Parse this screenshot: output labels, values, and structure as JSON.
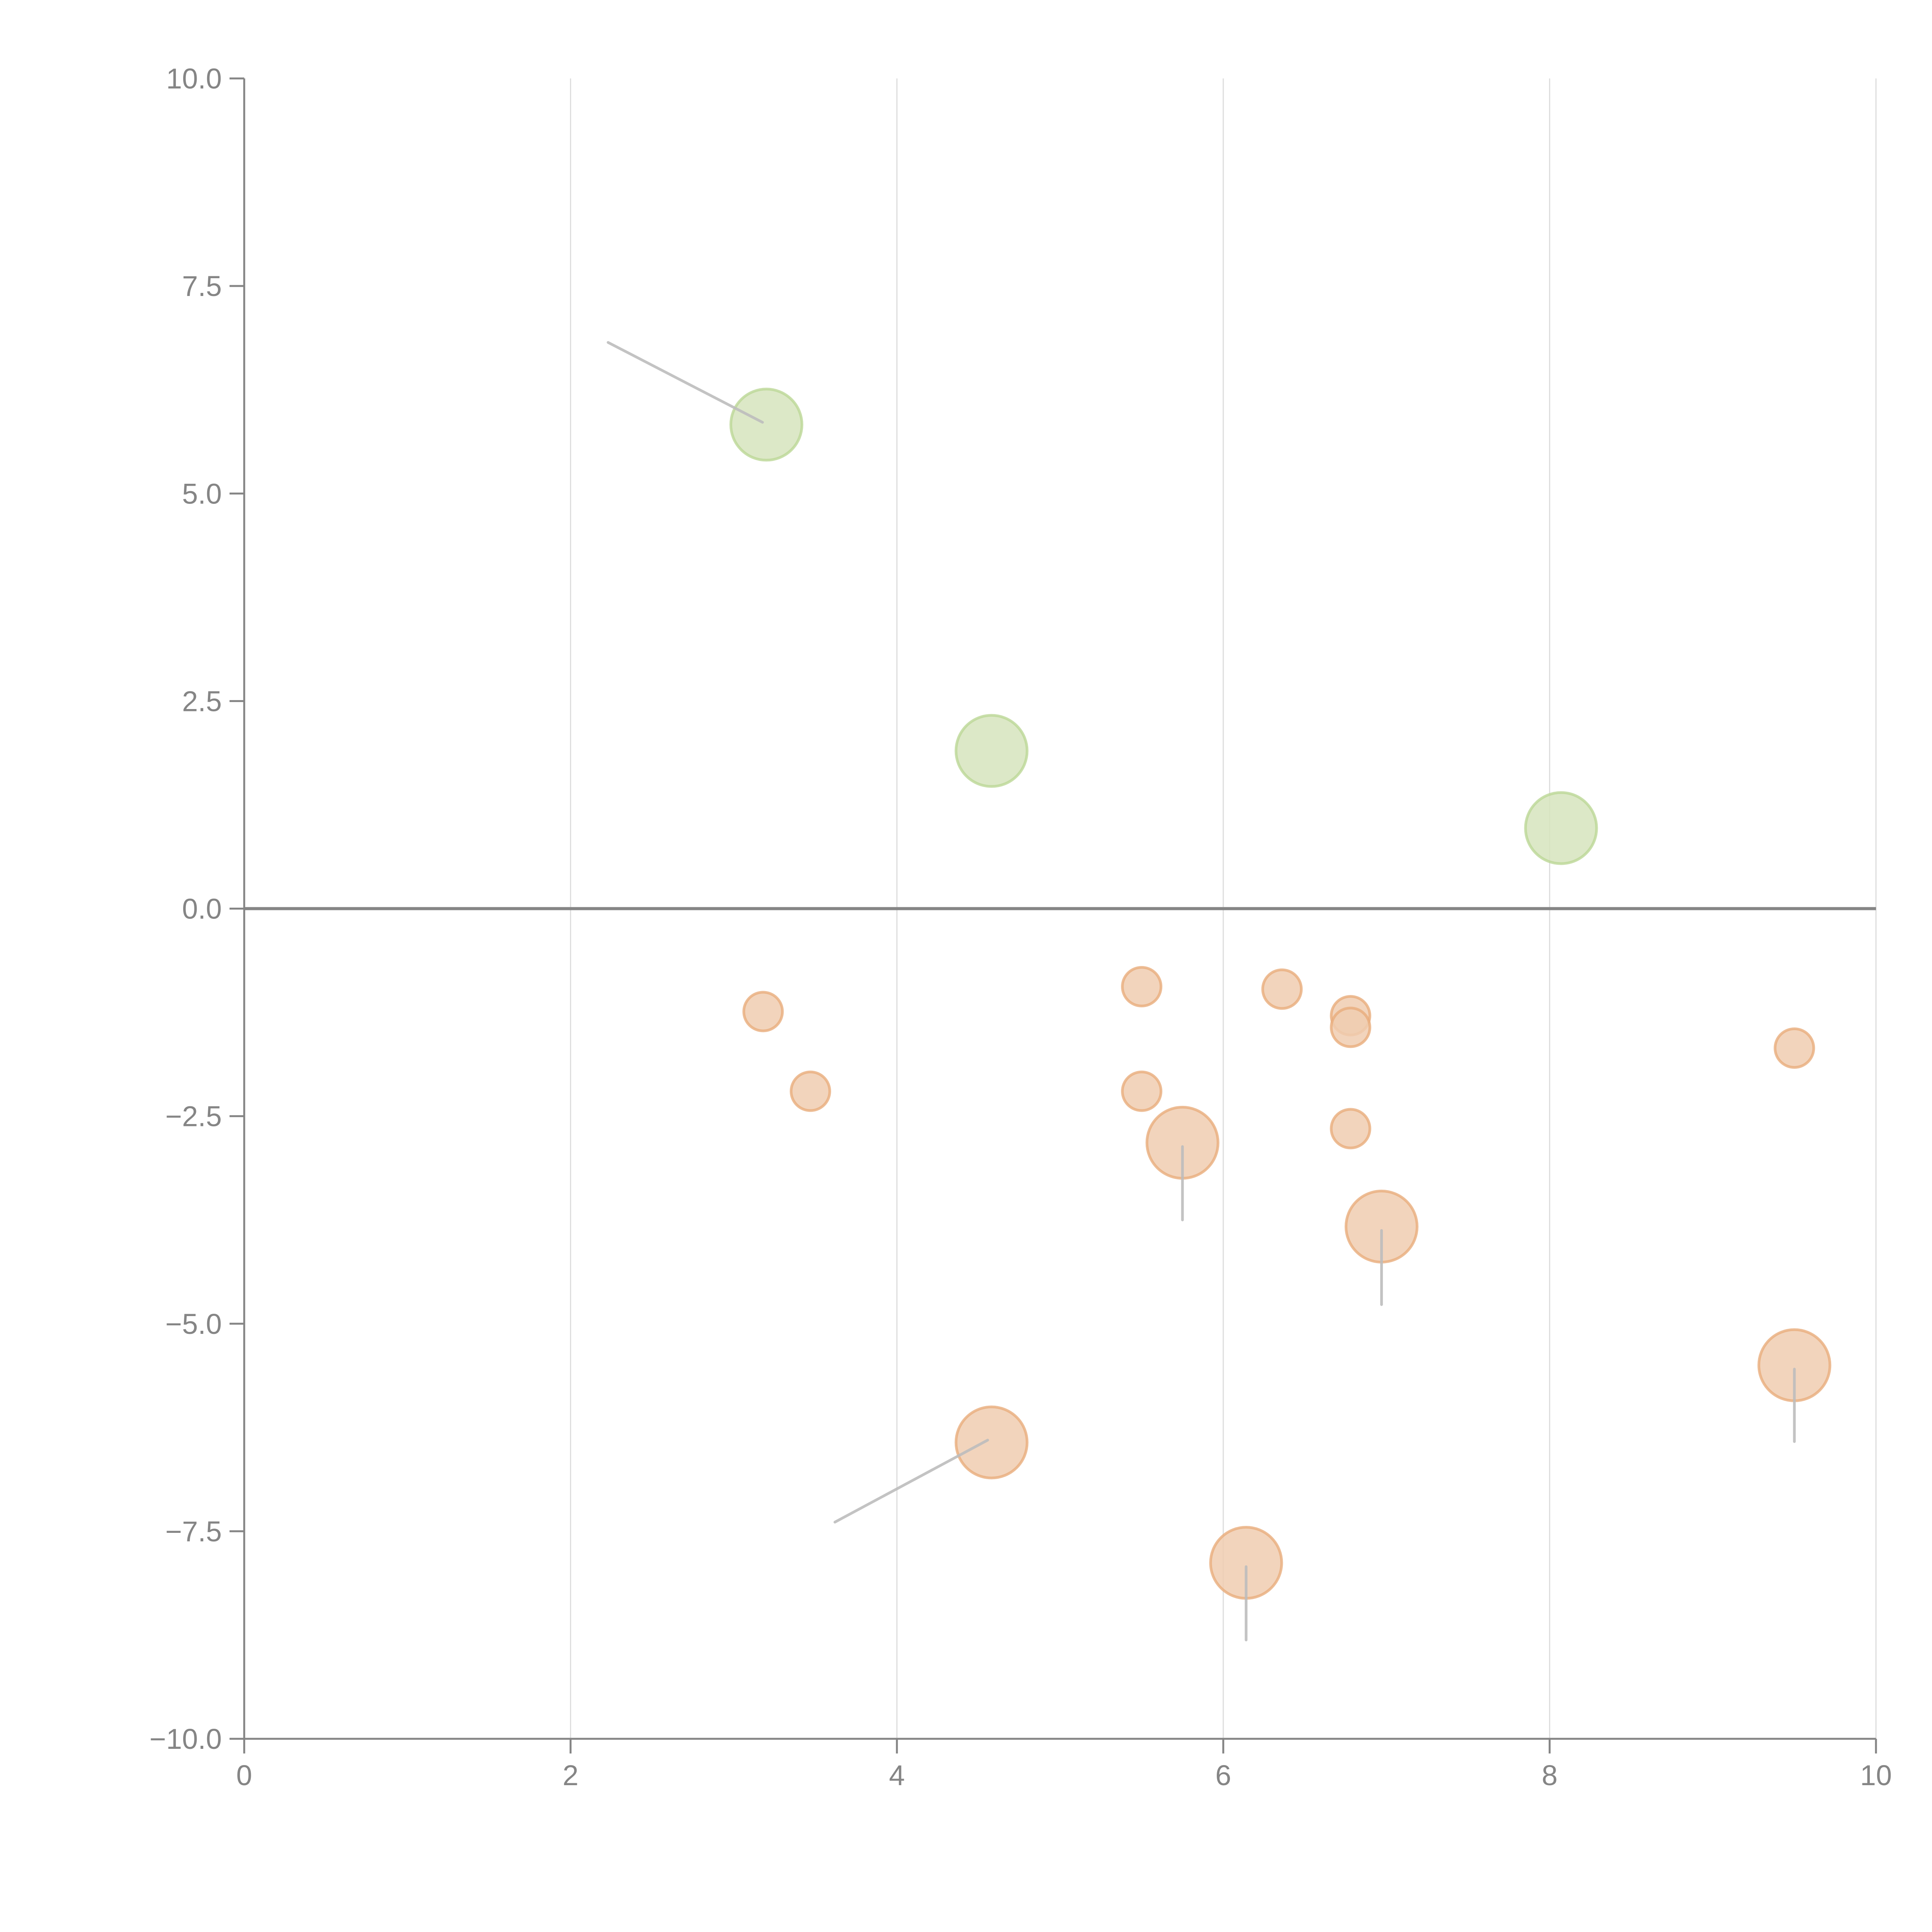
{
  "chart_data": {
    "type": "scatter",
    "title": "",
    "xlabel": "",
    "ylabel": "",
    "xlim": [
      0,
      10
    ],
    "ylim": [
      -10,
      10
    ],
    "xticks": [
      "0",
      "2",
      "4",
      "6",
      "8",
      "10"
    ],
    "xtick_values": [
      0,
      2,
      4,
      6,
      8,
      10
    ],
    "yticks": [
      "10.0",
      "7.5",
      "5.0",
      "2.5",
      "0.0",
      "−2.5",
      "−5.0",
      "−7.5",
      "−10.0"
    ],
    "ytick_values": [
      10,
      7.5,
      5,
      2.5,
      0,
      -2.5,
      -5,
      -7.5,
      -10
    ],
    "grid": "vertical",
    "zero_line": true,
    "legend": "none",
    "colors": {
      "positive_fill": "#d6e4bd",
      "positive_stroke": "#bcd796",
      "negative_fill": "#f0cdb0",
      "negative_stroke": "#e8ad7c",
      "axis": "#858585",
      "grid": "#dddddd",
      "leader": "#bdbdbd"
    },
    "series": [
      {
        "name": "positive",
        "points": [
          {
            "x": 3.2,
            "y": 5.83,
            "size": "large",
            "leader": {
              "x": 2.23,
              "y": 6.82
            }
          },
          {
            "x": 4.58,
            "y": 1.9,
            "size": "large"
          },
          {
            "x": 8.07,
            "y": 0.97,
            "size": "large"
          }
        ]
      },
      {
        "name": "negative",
        "points": [
          {
            "x": 3.18,
            "y": -1.24,
            "size": "small"
          },
          {
            "x": 3.47,
            "y": -2.2,
            "size": "small"
          },
          {
            "x": 5.5,
            "y": -0.94,
            "size": "small"
          },
          {
            "x": 5.5,
            "y": -2.2,
            "size": "small"
          },
          {
            "x": 6.36,
            "y": -0.97,
            "size": "small"
          },
          {
            "x": 6.78,
            "y": -1.29,
            "size": "small"
          },
          {
            "x": 6.78,
            "y": -1.43,
            "size": "small"
          },
          {
            "x": 6.78,
            "y": -2.65,
            "size": "small"
          },
          {
            "x": 9.5,
            "y": -1.68,
            "size": "small"
          },
          {
            "x": 5.75,
            "y": -2.82,
            "size": "large",
            "leader": {
              "x": 5.75,
              "y": -3.75
            }
          },
          {
            "x": 6.97,
            "y": -3.83,
            "size": "large",
            "leader": {
              "x": 6.97,
              "y": -4.77
            }
          },
          {
            "x": 9.5,
            "y": -5.5,
            "size": "large",
            "leader": {
              "x": 9.5,
              "y": -6.42
            }
          },
          {
            "x": 4.58,
            "y": -6.43,
            "size": "large",
            "leader": {
              "x": 3.62,
              "y": -7.39
            }
          },
          {
            "x": 6.14,
            "y": -7.88,
            "size": "large",
            "leader": {
              "x": 6.14,
              "y": -8.81
            }
          }
        ]
      }
    ]
  }
}
